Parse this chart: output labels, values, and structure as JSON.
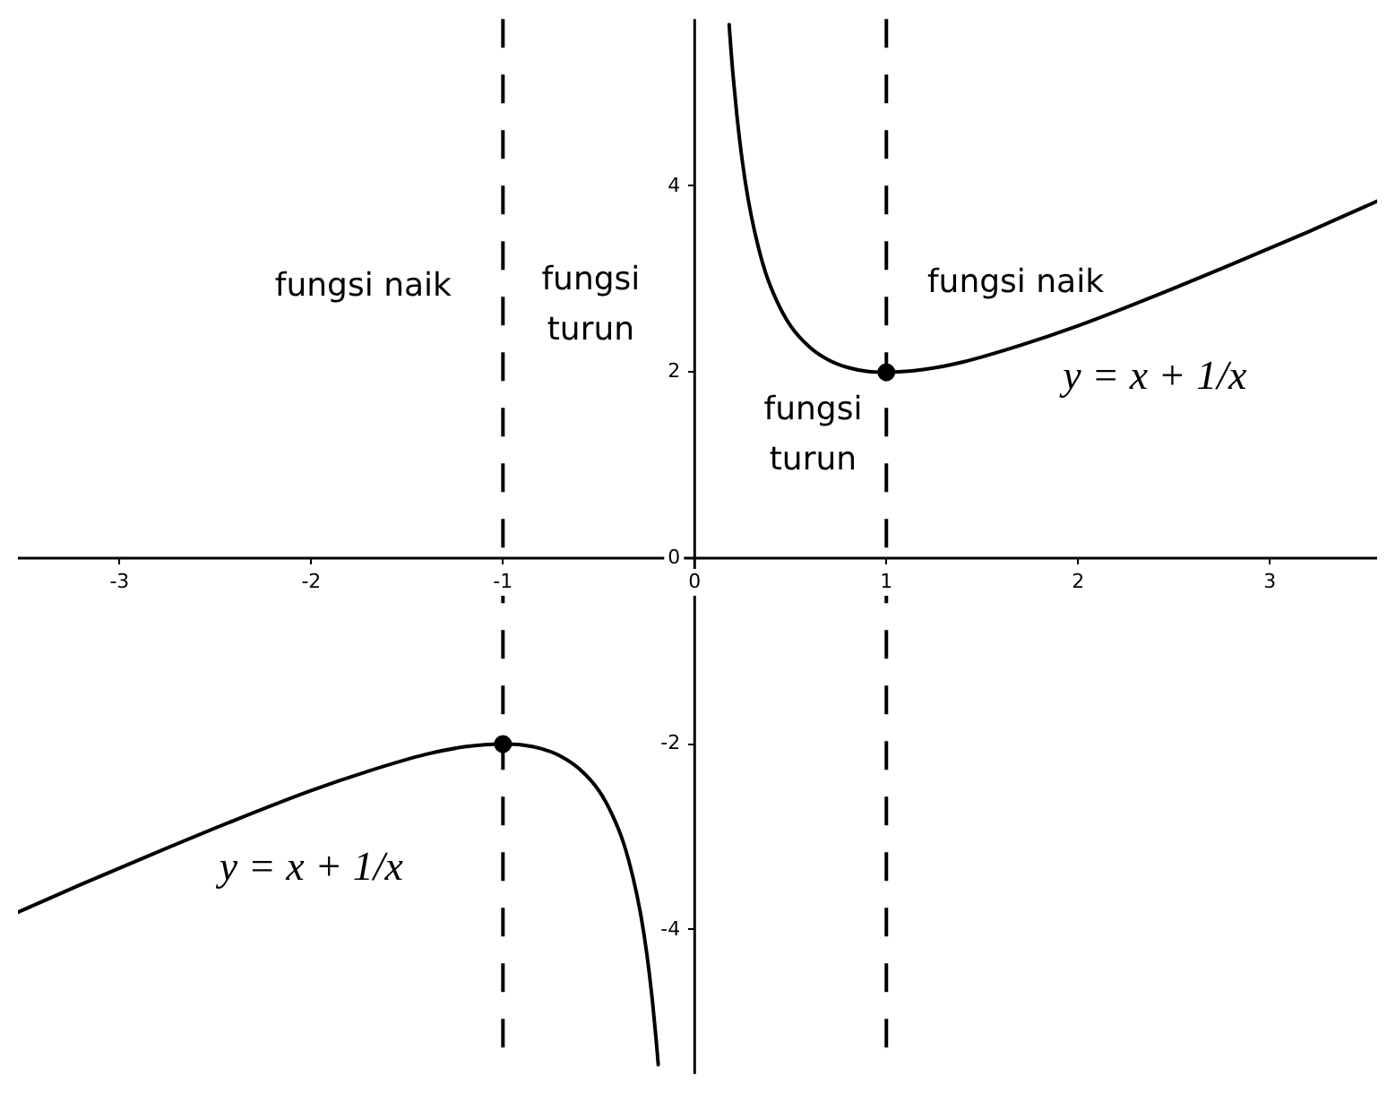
{
  "chart_data": {
    "type": "line",
    "xlim": [
      -3.53,
      3.56
    ],
    "ylim": [
      -5.55,
      5.8
    ],
    "xticks": [
      -3,
      -2,
      -1,
      0,
      1,
      2,
      3
    ],
    "yticks": [
      -4,
      -2,
      0,
      2,
      4
    ],
    "grid": false,
    "legend": false,
    "marker": "none",
    "line_style": "solid",
    "series": [
      {
        "name": "y = x + 1/x",
        "color": "#000000",
        "x": [
          -3.53,
          -3.2,
          -2.8,
          -2.4,
          -2.0,
          -1.7,
          -1.4,
          -1.2,
          -1.0,
          -0.9,
          -0.8,
          -0.7,
          -0.6,
          -0.5,
          -0.43,
          -0.37,
          -0.32,
          -0.28,
          -0.25,
          -0.22,
          -0.2,
          -0.19
        ],
        "values": [
          -3.81,
          -3.51,
          -3.16,
          -2.82,
          -2.5,
          -2.29,
          -2.11,
          -2.03,
          -2.0,
          -2.01,
          -2.05,
          -2.13,
          -2.27,
          -2.5,
          -2.76,
          -3.07,
          -3.45,
          -3.85,
          -4.25,
          -4.77,
          -5.2,
          -5.45
        ]
      },
      {
        "name": "y = x + 1/x",
        "color": "#000000",
        "x": [
          0.18,
          0.19,
          0.2,
          0.22,
          0.25,
          0.28,
          0.32,
          0.37,
          0.43,
          0.5,
          0.6,
          0.7,
          0.8,
          0.9,
          1.0,
          1.2,
          1.4,
          1.7,
          2.0,
          2.4,
          2.8,
          3.2,
          3.56
        ],
        "values": [
          5.74,
          5.45,
          5.2,
          4.77,
          4.25,
          3.85,
          3.45,
          3.07,
          2.76,
          2.5,
          2.27,
          2.13,
          2.05,
          2.01,
          2.0,
          2.03,
          2.11,
          2.29,
          2.5,
          2.82,
          3.16,
          3.51,
          3.84
        ]
      },
      {
        "type": "scatter",
        "marker": "circle",
        "color": "#000000",
        "x": [
          -1,
          1
        ],
        "values": [
          -2,
          2
        ]
      }
    ],
    "ref_lines": [
      {
        "axis": "x",
        "value": -1,
        "color": "#000000",
        "line_style": "dashed"
      },
      {
        "axis": "x",
        "value": 1,
        "color": "#000000",
        "line_style": "dashed"
      }
    ],
    "annotations": [
      "fungsi naik",
      "fungsi\nturun",
      "fungsi naik",
      "fungsi\nturun"
    ]
  }
}
